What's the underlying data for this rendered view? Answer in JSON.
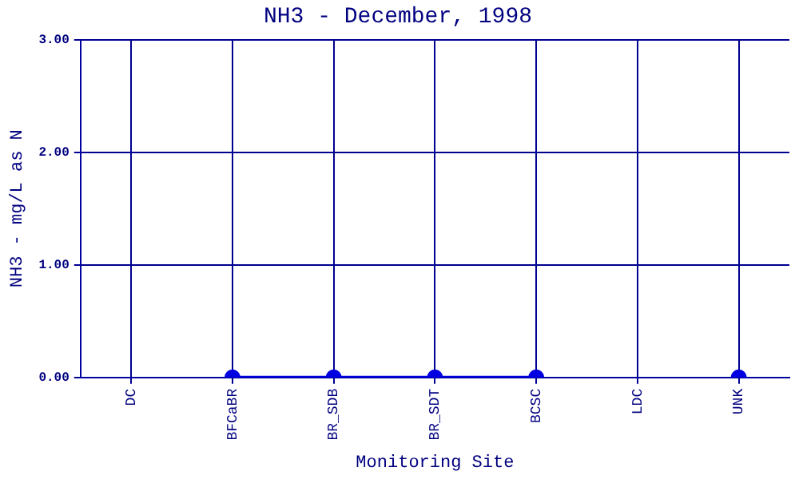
{
  "chart_data": {
    "type": "line",
    "title": "NH3 - December, 1998",
    "xlabel": "Monitoring Site",
    "ylabel": "NH3 - mg/L as N",
    "categories": [
      "DC",
      "BFCaBR",
      "BR_SDB",
      "BR_SDT",
      "BCSC",
      "LDC",
      "UNK"
    ],
    "series": [
      {
        "color": "#0000e0",
        "values": [
          null,
          0,
          0,
          0,
          0,
          null,
          0
        ]
      }
    ],
    "ylim": [
      0,
      3
    ],
    "yticks": [
      {
        "value": 0,
        "label": "0.00"
      },
      {
        "value": 1,
        "label": "1.00"
      },
      {
        "value": 2,
        "label": "2.00"
      },
      {
        "value": 3,
        "label": "3.00"
      }
    ],
    "grid": true,
    "marker": "circle",
    "line_style": "solid"
  }
}
